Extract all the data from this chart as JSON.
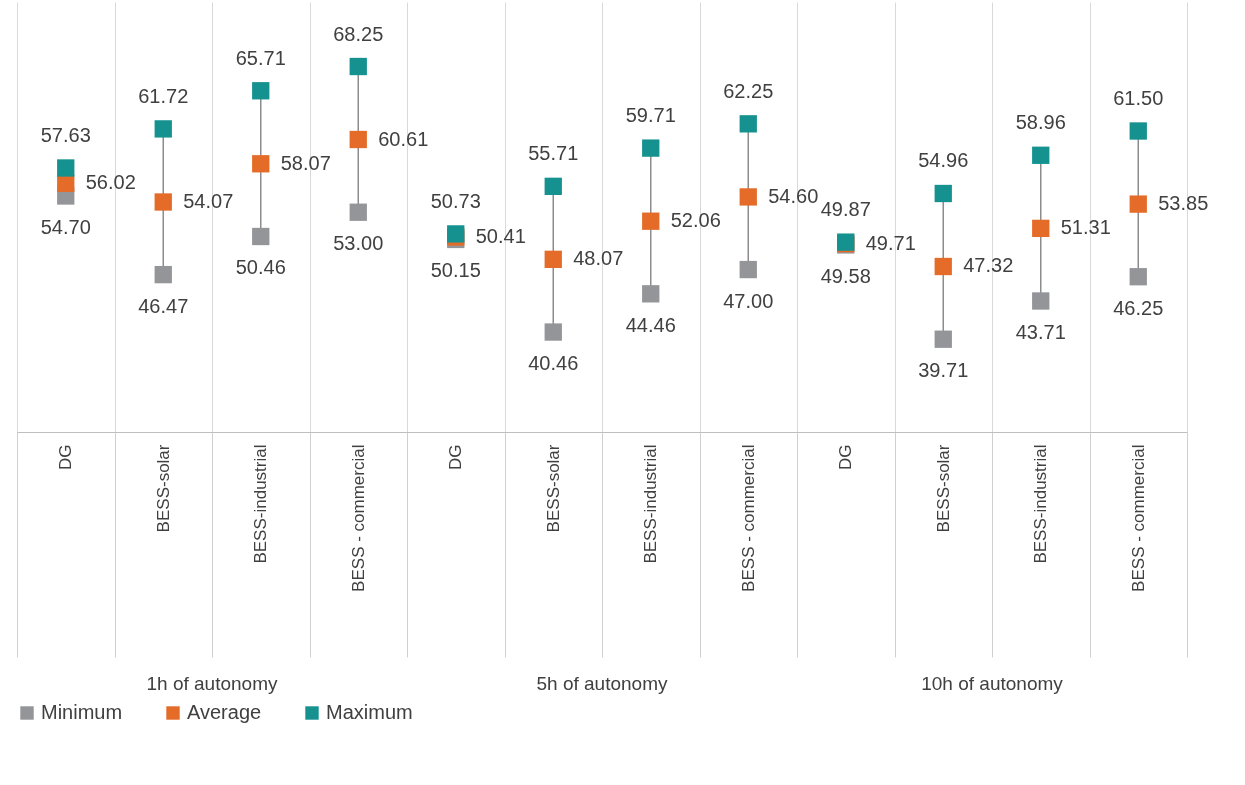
{
  "chart_data": {
    "type": "scatter",
    "categories": [
      "DG",
      "BESS-solar",
      "BESS-industrial",
      "BESS - commercial",
      "DG",
      "BESS-solar",
      "BESS-industrial",
      "BESS - commercial",
      "DG",
      "BESS-solar",
      "BESS-industrial",
      "BESS - commercial"
    ],
    "series": [
      {
        "name": "Minimum",
        "color": "#939598",
        "values": [
          54.7,
          46.47,
          50.46,
          53.0,
          50.15,
          40.46,
          44.46,
          47.0,
          49.58,
          39.71,
          43.71,
          46.25
        ],
        "value_labels": [
          "54.70",
          "46.47",
          "50.46",
          "53.00",
          "50.15",
          "40.46",
          "44.46",
          "47.00",
          "49.58",
          "39.71",
          "43.71",
          "46.25"
        ]
      },
      {
        "name": "Average",
        "color": "#e46c28",
        "values": [
          56.02,
          54.07,
          58.07,
          60.61,
          50.41,
          48.07,
          52.06,
          54.6,
          49.71,
          47.32,
          51.31,
          53.85
        ],
        "value_labels": [
          "56.02",
          "54.07",
          "58.07",
          "60.61",
          "50.41",
          "48.07",
          "52.06",
          "54.60",
          "49.71",
          "47.32",
          "51.31",
          "53.85"
        ]
      },
      {
        "name": "Maximum",
        "color": "#15928f",
        "values": [
          57.63,
          61.72,
          65.71,
          68.25,
          50.73,
          55.71,
          59.71,
          62.25,
          49.87,
          54.96,
          58.96,
          61.5
        ],
        "value_labels": [
          "57.63",
          "61.72",
          "65.71",
          "68.25",
          "50.73",
          "55.71",
          "59.71",
          "62.25",
          "49.87",
          "54.96",
          "58.96",
          "61.50"
        ]
      }
    ],
    "annotations": [
      "1h of autonomy",
      "5h of autonomy",
      "10h of autonomy"
    ],
    "ylim": [
      30,
      75
    ],
    "tick_labels": "x",
    "grid": "x",
    "marker": "square",
    "legend": "bottom"
  }
}
